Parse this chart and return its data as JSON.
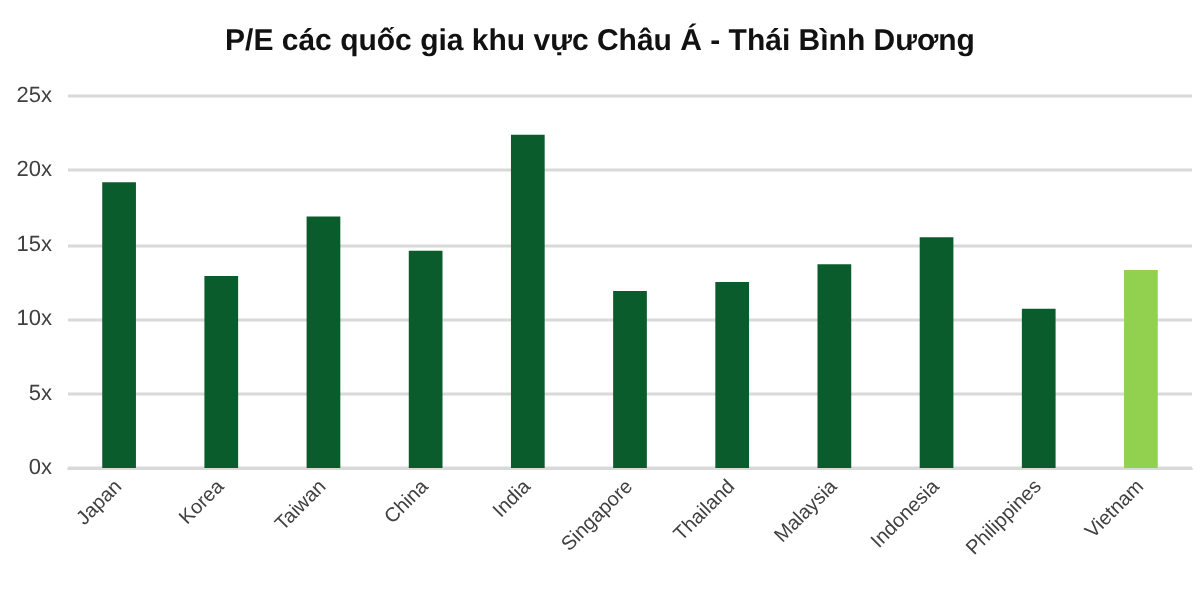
{
  "chart_data": {
    "type": "bar",
    "title": "P/E các quốc gia khu vực Châu Á - Thái Bình Dương",
    "categories": [
      "Japan",
      "Korea",
      "Taiwan",
      "China",
      "India",
      "Singapore",
      "Thailand",
      "Malaysia",
      "Indonesia",
      "Philippines",
      "Vietnam"
    ],
    "values": [
      19.2,
      12.9,
      16.9,
      14.6,
      22.4,
      11.9,
      12.5,
      13.7,
      15.5,
      10.7,
      13.3
    ],
    "colors": [
      "#0b5c2c",
      "#0b5c2c",
      "#0b5c2c",
      "#0b5c2c",
      "#0b5c2c",
      "#0b5c2c",
      "#0b5c2c",
      "#0b5c2c",
      "#0b5c2c",
      "#0b5c2c",
      "#92d050"
    ],
    "ylim": [
      0,
      25
    ],
    "yticks": [
      {
        "value": 0,
        "label": "0x"
      },
      {
        "value": 5,
        "label": "5x"
      },
      {
        "value": 10,
        "label": "10x"
      },
      {
        "value": 15,
        "label": "15x"
      },
      {
        "value": 20,
        "label": "20x"
      },
      {
        "value": 25,
        "label": "25x"
      }
    ],
    "grid": "y"
  }
}
